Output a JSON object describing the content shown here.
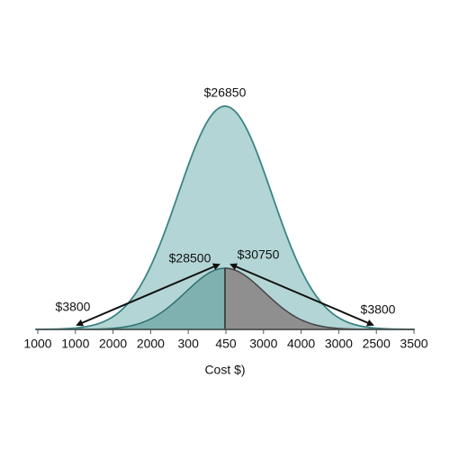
{
  "peak_label": "$26850",
  "annotations": [
    "$28500",
    "$30750",
    "$3800",
    "$3800"
  ],
  "axis": {
    "tick_labels": [
      "1000",
      "1000",
      "2000",
      "2000",
      "300",
      "450",
      "3000",
      "4000",
      "3000",
      "2500",
      "3500"
    ],
    "label": "Cost $)"
  }
}
